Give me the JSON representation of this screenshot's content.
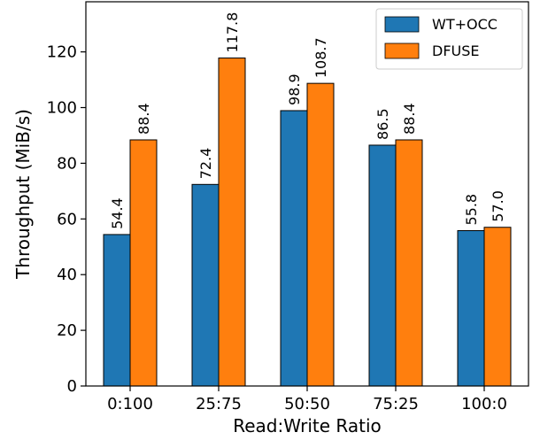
{
  "chart_data": {
    "type": "bar",
    "title": "",
    "xlabel": "Read:Write Ratio",
    "ylabel": "Throughput (MiB/s)",
    "categories": [
      "0:100",
      "25:75",
      "50:50",
      "75:25",
      "100:0"
    ],
    "ylim": [
      0,
      138
    ],
    "yticks": [
      0,
      20,
      40,
      60,
      80,
      100,
      120
    ],
    "grid": false,
    "legend_position": "top-right",
    "series": [
      {
        "name": "WT+OCC",
        "color": "#1f77b4",
        "values": [
          54.4,
          72.4,
          98.9,
          86.5,
          55.8
        ],
        "labels": [
          "54.4",
          "72.4",
          "98.9",
          "86.5",
          "55.8"
        ]
      },
      {
        "name": "DFUSE",
        "color": "#ff7f0e",
        "values": [
          88.4,
          117.8,
          108.7,
          88.4,
          57.0
        ],
        "labels": [
          "88.4",
          "117.8",
          "108.7",
          "88.4",
          "57.0"
        ]
      }
    ]
  }
}
